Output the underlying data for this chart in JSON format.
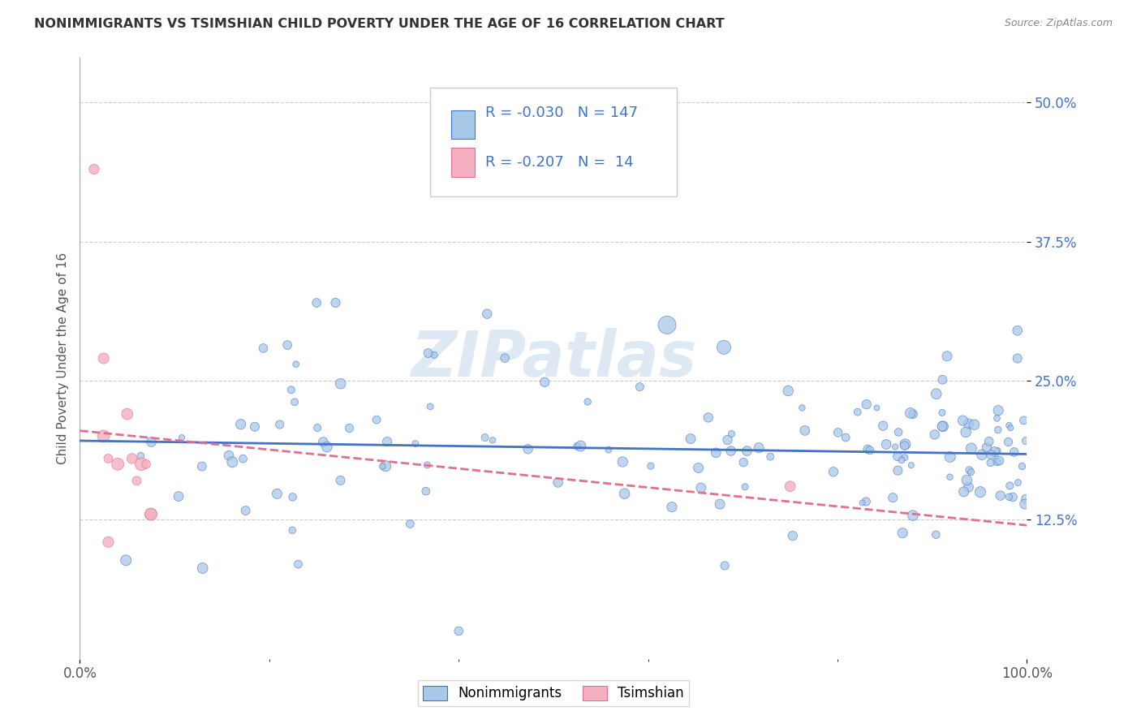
{
  "title": "NONIMMIGRANTS VS TSIMSHIAN CHILD POVERTY UNDER THE AGE OF 16 CORRELATION CHART",
  "source": "Source: ZipAtlas.com",
  "ylabel": "Child Poverty Under the Age of 16",
  "xlim": [
    0.0,
    1.0
  ],
  "ylim": [
    0.0,
    0.54
  ],
  "x_ticks": [
    0.0,
    1.0
  ],
  "x_tick_labels": [
    "0.0%",
    "100.0%"
  ],
  "y_ticks": [
    0.125,
    0.25,
    0.375,
    0.5
  ],
  "y_tick_labels": [
    "12.5%",
    "25.0%",
    "37.5%",
    "50.0%"
  ],
  "blue_color": "#a8c8e8",
  "blue_line_color": "#4472c4",
  "pink_color": "#f4b0c0",
  "pink_line_color": "#e07090",
  "legend_blue_label": "Nonimmigrants",
  "legend_pink_label": "Tsimshian",
  "r_blue": -0.03,
  "n_blue": 147,
  "r_pink": -0.207,
  "n_pink": 14,
  "watermark": "ZIPatlas",
  "background_color": "#ffffff",
  "grid_color": "#cccccc",
  "title_color": "#333333",
  "source_color": "#888888",
  "annotation_color": "#4472c4",
  "blue_seed": 123,
  "pink_seed": 99
}
